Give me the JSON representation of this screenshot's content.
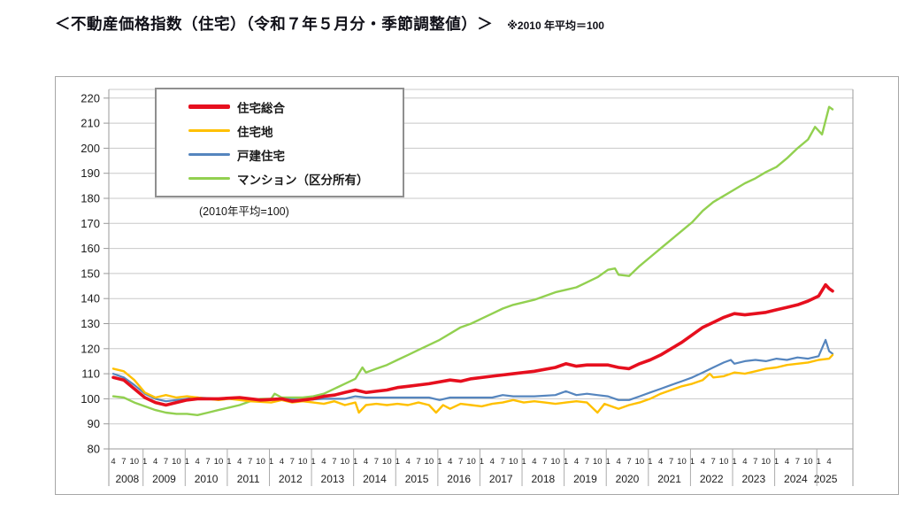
{
  "header": {
    "title": "＜不動産価格指数（住宅）（令和７年５月分・季節調整値）＞",
    "note": "※2010 年平均＝100"
  },
  "chart": {
    "inner_note": "(2010年平均=100)",
    "grid_color": "#c8c8c8",
    "axis_color": "#9a9a9a",
    "separator_color": "#ababab",
    "label_color": "#1c1c1c"
  },
  "chart_data": {
    "type": "line",
    "title": "＜不動産価格指数（住宅）（令和７年５月分・季節調整値）＞",
    "note": "※2010 年平均＝100",
    "inner_note": "(2010年平均=100)",
    "ylabel": "",
    "xlabel": "",
    "ylim": [
      80,
      220
    ],
    "y_ticks": [
      80,
      90,
      100,
      110,
      120,
      130,
      140,
      150,
      160,
      170,
      180,
      190,
      200,
      210,
      220
    ],
    "grid": "horizontal",
    "legend_position": "top-left-inside",
    "x_unit": "months since 2008-04 (monthly index, 0 = Apr 2008, 205 = May 2025)",
    "x_range": [
      0,
      205
    ],
    "x_axis": {
      "years": [
        "2008",
        "2009",
        "2010",
        "2011",
        "2012",
        "2013",
        "2014",
        "2015",
        "2016",
        "2017",
        "2018",
        "2019",
        "2020",
        "2021",
        "2022",
        "2023",
        "2024",
        "2025"
      ],
      "first_year_months": [
        "4",
        "7",
        "10"
      ],
      "full_year_months": [
        "1",
        "4",
        "7",
        "10"
      ],
      "last_year_months": [
        "1",
        "4"
      ]
    },
    "series": [
      {
        "name": "住宅総合",
        "color": "#e60f1e",
        "stroke_width": 3.6,
        "points": [
          [
            0,
            108.5
          ],
          [
            3,
            107.5
          ],
          [
            6,
            104
          ],
          [
            9,
            100.5
          ],
          [
            12,
            98.5
          ],
          [
            15,
            97.5
          ],
          [
            18,
            98.5
          ],
          [
            21,
            99.5
          ],
          [
            24,
            100
          ],
          [
            30,
            100
          ],
          [
            36,
            100.5
          ],
          [
            42,
            99.5
          ],
          [
            48,
            100
          ],
          [
            51,
            99
          ],
          [
            54,
            99.5
          ],
          [
            57,
            100
          ],
          [
            60,
            101
          ],
          [
            63,
            101.5
          ],
          [
            66,
            102.5
          ],
          [
            69,
            103.5
          ],
          [
            72,
            102.5
          ],
          [
            75,
            103
          ],
          [
            78,
            103.5
          ],
          [
            81,
            104.5
          ],
          [
            84,
            105
          ],
          [
            90,
            106
          ],
          [
            96,
            107.5
          ],
          [
            99,
            107
          ],
          [
            102,
            108
          ],
          [
            108,
            109
          ],
          [
            114,
            110
          ],
          [
            120,
            111
          ],
          [
            126,
            112.5
          ],
          [
            129,
            114
          ],
          [
            132,
            113
          ],
          [
            135,
            113.5
          ],
          [
            141,
            113.5
          ],
          [
            144,
            112.5
          ],
          [
            147,
            112
          ],
          [
            150,
            114
          ],
          [
            153,
            115.5
          ],
          [
            156,
            117.5
          ],
          [
            159,
            120
          ],
          [
            162,
            122.5
          ],
          [
            165,
            125.5
          ],
          [
            168,
            128.5
          ],
          [
            171,
            130.5
          ],
          [
            174,
            132.5
          ],
          [
            177,
            134
          ],
          [
            180,
            133.5
          ],
          [
            183,
            134
          ],
          [
            186,
            134.5
          ],
          [
            189,
            135.5
          ],
          [
            192,
            136.5
          ],
          [
            195,
            137.5
          ],
          [
            198,
            139
          ],
          [
            201,
            141
          ],
          [
            203,
            145.5
          ],
          [
            204,
            144
          ],
          [
            205,
            143
          ]
        ]
      },
      {
        "name": "住宅地",
        "color": "#ffc000",
        "stroke_width": 2.4,
        "points": [
          [
            0,
            112
          ],
          [
            3,
            111
          ],
          [
            6,
            107.5
          ],
          [
            9,
            102.5
          ],
          [
            12,
            100.5
          ],
          [
            15,
            101.5
          ],
          [
            18,
            100.5
          ],
          [
            21,
            101
          ],
          [
            24,
            100.5
          ],
          [
            27,
            100
          ],
          [
            30,
            99.5
          ],
          [
            33,
            100
          ],
          [
            36,
            99.5
          ],
          [
            39,
            99
          ],
          [
            45,
            98.5
          ],
          [
            48,
            99.5
          ],
          [
            51,
            98.5
          ],
          [
            54,
            99
          ],
          [
            57,
            98.5
          ],
          [
            60,
            98
          ],
          [
            63,
            99
          ],
          [
            66,
            97.5
          ],
          [
            69,
            98.5
          ],
          [
            70,
            94.5
          ],
          [
            72,
            97.5
          ],
          [
            75,
            98
          ],
          [
            78,
            97.5
          ],
          [
            81,
            98
          ],
          [
            84,
            97.5
          ],
          [
            87,
            98.5
          ],
          [
            90,
            97.5
          ],
          [
            92,
            94.5
          ],
          [
            94,
            97.5
          ],
          [
            96,
            96
          ],
          [
            99,
            98
          ],
          [
            102,
            97.5
          ],
          [
            105,
            97
          ],
          [
            108,
            98
          ],
          [
            111,
            98.5
          ],
          [
            114,
            99.5
          ],
          [
            117,
            98.5
          ],
          [
            120,
            99
          ],
          [
            123,
            98.5
          ],
          [
            126,
            98
          ],
          [
            129,
            98.5
          ],
          [
            132,
            99
          ],
          [
            135,
            98.5
          ],
          [
            138,
            94.5
          ],
          [
            140,
            98
          ],
          [
            144,
            96
          ],
          [
            147,
            97.5
          ],
          [
            150,
            98.5
          ],
          [
            153,
            100
          ],
          [
            156,
            102
          ],
          [
            159,
            103.5
          ],
          [
            162,
            105
          ],
          [
            165,
            106
          ],
          [
            168,
            107.5
          ],
          [
            170,
            110
          ],
          [
            171,
            108.5
          ],
          [
            174,
            109
          ],
          [
            177,
            110.5
          ],
          [
            180,
            110
          ],
          [
            183,
            111
          ],
          [
            186,
            112
          ],
          [
            189,
            112.5
          ],
          [
            192,
            113.5
          ],
          [
            195,
            114
          ],
          [
            198,
            114.5
          ],
          [
            201,
            115.5
          ],
          [
            204,
            116
          ],
          [
            205,
            117.5
          ]
        ]
      },
      {
        "name": "戸建住宅",
        "color": "#5585be",
        "stroke_width": 2.2,
        "points": [
          [
            0,
            110
          ],
          [
            3,
            108.5
          ],
          [
            6,
            105.5
          ],
          [
            9,
            102
          ],
          [
            12,
            100
          ],
          [
            15,
            99
          ],
          [
            18,
            99.5
          ],
          [
            21,
            100
          ],
          [
            24,
            100.5
          ],
          [
            30,
            100
          ],
          [
            36,
            100.5
          ],
          [
            42,
            99.5
          ],
          [
            48,
            100
          ],
          [
            54,
            99.5
          ],
          [
            60,
            100
          ],
          [
            66,
            100
          ],
          [
            69,
            101
          ],
          [
            72,
            100.5
          ],
          [
            78,
            100.5
          ],
          [
            84,
            100.5
          ],
          [
            90,
            100.5
          ],
          [
            93,
            99.5
          ],
          [
            96,
            100.5
          ],
          [
            102,
            100.5
          ],
          [
            108,
            100.5
          ],
          [
            111,
            101.5
          ],
          [
            114,
            101
          ],
          [
            120,
            101
          ],
          [
            126,
            101.5
          ],
          [
            129,
            103
          ],
          [
            132,
            101.5
          ],
          [
            135,
            102
          ],
          [
            138,
            101.5
          ],
          [
            141,
            101
          ],
          [
            144,
            99.5
          ],
          [
            147,
            99.5
          ],
          [
            150,
            101
          ],
          [
            153,
            102.5
          ],
          [
            156,
            104
          ],
          [
            159,
            105.5
          ],
          [
            162,
            107
          ],
          [
            165,
            108.5
          ],
          [
            168,
            110.5
          ],
          [
            171,
            112.5
          ],
          [
            174,
            114.5
          ],
          [
            176,
            115.5
          ],
          [
            177,
            114
          ],
          [
            180,
            115
          ],
          [
            183,
            115.5
          ],
          [
            186,
            115
          ],
          [
            189,
            116
          ],
          [
            192,
            115.5
          ],
          [
            195,
            116.5
          ],
          [
            198,
            116
          ],
          [
            201,
            117
          ],
          [
            203,
            123.5
          ],
          [
            204,
            119
          ],
          [
            205,
            118
          ]
        ]
      },
      {
        "name": "マンション（区分所有）",
        "color": "#92d050",
        "stroke_width": 2.4,
        "points": [
          [
            0,
            101
          ],
          [
            3,
            100.5
          ],
          [
            6,
            98.5
          ],
          [
            9,
            97
          ],
          [
            12,
            95.5
          ],
          [
            15,
            94.5
          ],
          [
            18,
            94
          ],
          [
            21,
            94
          ],
          [
            24,
            93.5
          ],
          [
            27,
            94.5
          ],
          [
            30,
            95.5
          ],
          [
            33,
            96.5
          ],
          [
            36,
            97.5
          ],
          [
            39,
            99
          ],
          [
            42,
            100
          ],
          [
            45,
            100
          ],
          [
            46,
            102
          ],
          [
            48,
            100.5
          ],
          [
            54,
            100.5
          ],
          [
            57,
            101
          ],
          [
            60,
            102
          ],
          [
            63,
            104
          ],
          [
            66,
            106
          ],
          [
            69,
            108
          ],
          [
            71,
            112.5
          ],
          [
            72,
            110.5
          ],
          [
            75,
            112
          ],
          [
            78,
            113.5
          ],
          [
            81,
            115.5
          ],
          [
            84,
            117.5
          ],
          [
            87,
            119.5
          ],
          [
            90,
            121.5
          ],
          [
            93,
            123.5
          ],
          [
            96,
            126
          ],
          [
            99,
            128.5
          ],
          [
            102,
            130
          ],
          [
            105,
            132
          ],
          [
            108,
            134
          ],
          [
            111,
            136
          ],
          [
            114,
            137.5
          ],
          [
            117,
            138.5
          ],
          [
            120,
            139.5
          ],
          [
            123,
            141
          ],
          [
            126,
            142.5
          ],
          [
            129,
            143.5
          ],
          [
            132,
            144.5
          ],
          [
            135,
            146.5
          ],
          [
            138,
            148.5
          ],
          [
            141,
            151.5
          ],
          [
            143,
            152
          ],
          [
            144,
            149.5
          ],
          [
            147,
            149
          ],
          [
            150,
            153
          ],
          [
            153,
            156.5
          ],
          [
            156,
            160
          ],
          [
            159,
            163.5
          ],
          [
            162,
            167
          ],
          [
            165,
            170.5
          ],
          [
            168,
            175
          ],
          [
            171,
            178.5
          ],
          [
            174,
            181
          ],
          [
            177,
            183.5
          ],
          [
            180,
            186
          ],
          [
            183,
            188
          ],
          [
            186,
            190.5
          ],
          [
            189,
            192.5
          ],
          [
            192,
            196
          ],
          [
            195,
            200
          ],
          [
            198,
            203.5
          ],
          [
            200,
            208.5
          ],
          [
            202,
            205.5
          ],
          [
            204,
            216.5
          ],
          [
            205,
            215.5
          ]
        ]
      }
    ]
  }
}
